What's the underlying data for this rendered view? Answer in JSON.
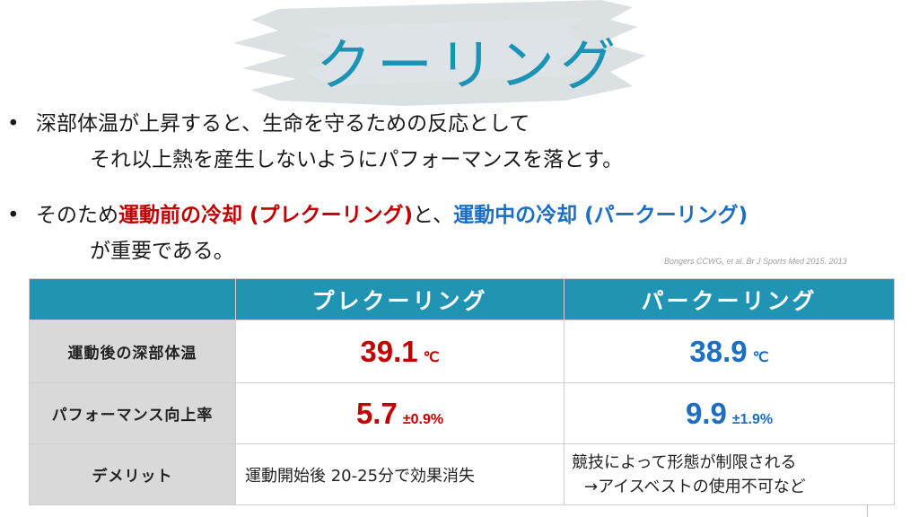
{
  "title": "クーリング",
  "bullets": {
    "dot": "•",
    "b1_line1": "深部体温が上昇すると、生命を守るための反応として",
    "b1_line2": "それ以上熱を産生しないようにパフォーマンスを落とす。",
    "b2_prefix": "そのため",
    "b2_red": "運動前の冷却 (プレクーリング)",
    "b2_mid": "と、",
    "b2_blue": "運動中の冷却 (パークーリング)",
    "b2_line2": "が重要である。"
  },
  "citation": "Bongers CCWG, et al. Br J Sports Med 2015. 2013",
  "table": {
    "header": [
      "",
      "プレクーリング",
      "パークーリング"
    ],
    "rows": [
      {
        "label": "運動後の深部体温",
        "pre_value": "39.1",
        "pre_unit": "℃",
        "per_value": "38.9",
        "per_unit": "℃"
      },
      {
        "label": "パフォーマンス向上率",
        "pre_value": "5.7",
        "pre_unit": "±0.9%",
        "per_value": "9.9",
        "per_unit": "±1.9%"
      },
      {
        "label": "デメリット",
        "pre_text": "運動開始後 20-25分で効果消失",
        "per_text_line1": "競技によって形態が制限される",
        "per_text_line2": "→アイスベストの使用不可など"
      }
    ]
  },
  "colors": {
    "accent": "#1b93b4",
    "header_bg": "#2294b3",
    "red": "#c00000",
    "blue": "#1b6ec2",
    "label_bg": "#d9d9d9"
  }
}
